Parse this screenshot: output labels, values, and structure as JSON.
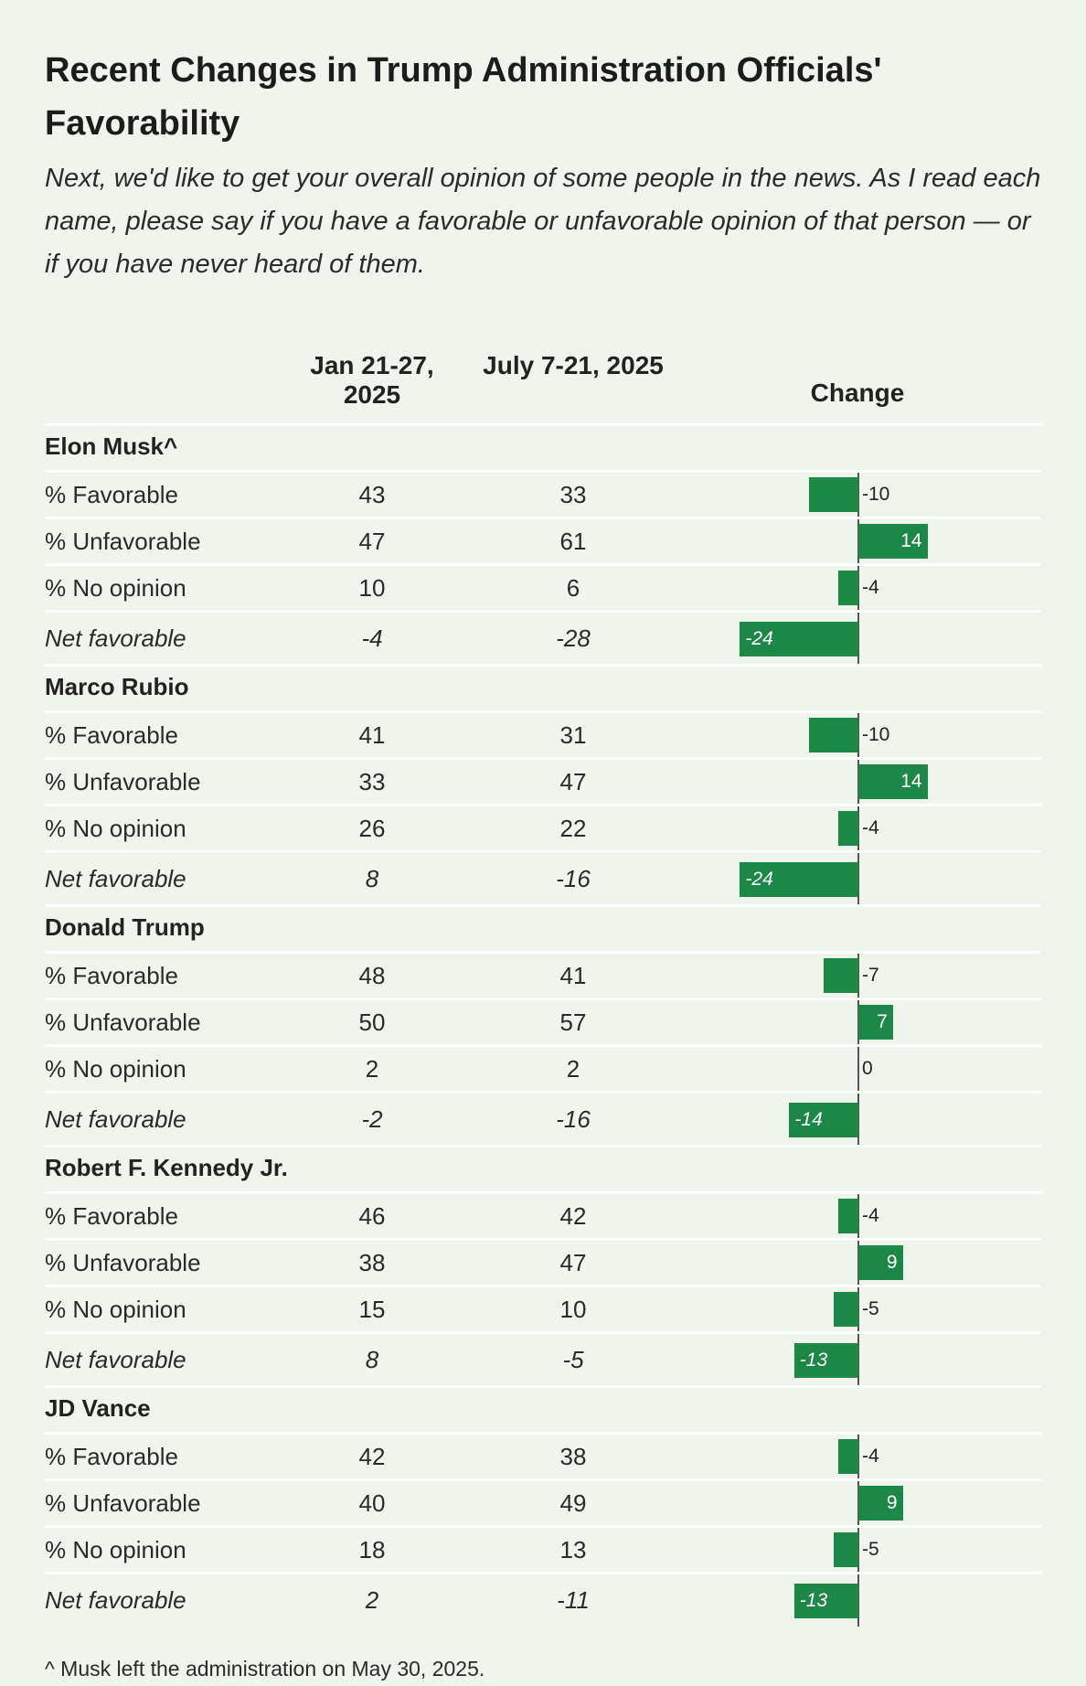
{
  "title": "Recent Changes in Trump Administration Officials' Favorability",
  "subtitle": "Next, we'd like to get your overall opinion of some people in the news. As I read each name, please say if you have a favorable or unfavorable opinion of that person — or if you have never heard of them.",
  "columns": {
    "period1": "Jan 21-27, 2025",
    "period2": "July 7-21, 2025",
    "change": "Change"
  },
  "footnote": "^ Musk left the administration on May 30, 2025.",
  "colors": {
    "bar": "#1d8748",
    "background": "#eff4ec",
    "rule": "#ffffff"
  },
  "chart_data": {
    "type": "table",
    "columns": [
      "Jan 21-27, 2025",
      "July 7-21, 2025",
      "Change"
    ],
    "groups": [
      {
        "name": "Elon Musk^",
        "rows": [
          {
            "label": "% Favorable",
            "v1": "43",
            "v2": "33",
            "change": -10,
            "change_label": "-10",
            "net": false
          },
          {
            "label": "% Unfavorable",
            "v1": "47",
            "v2": "61",
            "change": 14,
            "change_label": "14",
            "net": false
          },
          {
            "label": "% No opinion",
            "v1": "10",
            "v2": "6",
            "change": -4,
            "change_label": "-4",
            "net": false
          },
          {
            "label": "Net favorable",
            "v1": "-4",
            "v2": "-28",
            "change": -24,
            "change_label": "-24",
            "net": true
          }
        ]
      },
      {
        "name": "Marco Rubio",
        "rows": [
          {
            "label": "% Favorable",
            "v1": "41",
            "v2": "31",
            "change": -10,
            "change_label": "-10",
            "net": false
          },
          {
            "label": "% Unfavorable",
            "v1": "33",
            "v2": "47",
            "change": 14,
            "change_label": "14",
            "net": false
          },
          {
            "label": "% No opinion",
            "v1": "26",
            "v2": "22",
            "change": -4,
            "change_label": "-4",
            "net": false
          },
          {
            "label": "Net favorable",
            "v1": "8",
            "v2": "-16",
            "change": -24,
            "change_label": "-24",
            "net": true
          }
        ]
      },
      {
        "name": "Donald Trump",
        "rows": [
          {
            "label": "% Favorable",
            "v1": "48",
            "v2": "41",
            "change": -7,
            "change_label": "-7",
            "net": false
          },
          {
            "label": "% Unfavorable",
            "v1": "50",
            "v2": "57",
            "change": 7,
            "change_label": "7",
            "net": false
          },
          {
            "label": "% No opinion",
            "v1": "2",
            "v2": "2",
            "change": 0,
            "change_label": "0",
            "net": false
          },
          {
            "label": "Net favorable",
            "v1": "-2",
            "v2": "-16",
            "change": -14,
            "change_label": "-14",
            "net": true
          }
        ]
      },
      {
        "name": "Robert F. Kennedy Jr.",
        "rows": [
          {
            "label": "% Favorable",
            "v1": "46",
            "v2": "42",
            "change": -4,
            "change_label": "-4",
            "net": false
          },
          {
            "label": "% Unfavorable",
            "v1": "38",
            "v2": "47",
            "change": 9,
            "change_label": "9",
            "net": false
          },
          {
            "label": "% No opinion",
            "v1": "15",
            "v2": "10",
            "change": -5,
            "change_label": "-5",
            "net": false
          },
          {
            "label": "Net favorable",
            "v1": "8",
            "v2": "-5",
            "change": -13,
            "change_label": "-13",
            "net": true
          }
        ]
      },
      {
        "name": "JD Vance",
        "rows": [
          {
            "label": "% Favorable",
            "v1": "42",
            "v2": "38",
            "change": -4,
            "change_label": "-4",
            "net": false
          },
          {
            "label": "% Unfavorable",
            "v1": "40",
            "v2": "49",
            "change": 9,
            "change_label": "9",
            "net": false
          },
          {
            "label": "% No opinion",
            "v1": "18",
            "v2": "13",
            "change": -5,
            "change_label": "-5",
            "net": false
          },
          {
            "label": "Net favorable",
            "v1": "2",
            "v2": "-11",
            "change": -13,
            "change_label": "-13",
            "net": true
          }
        ]
      }
    ]
  }
}
